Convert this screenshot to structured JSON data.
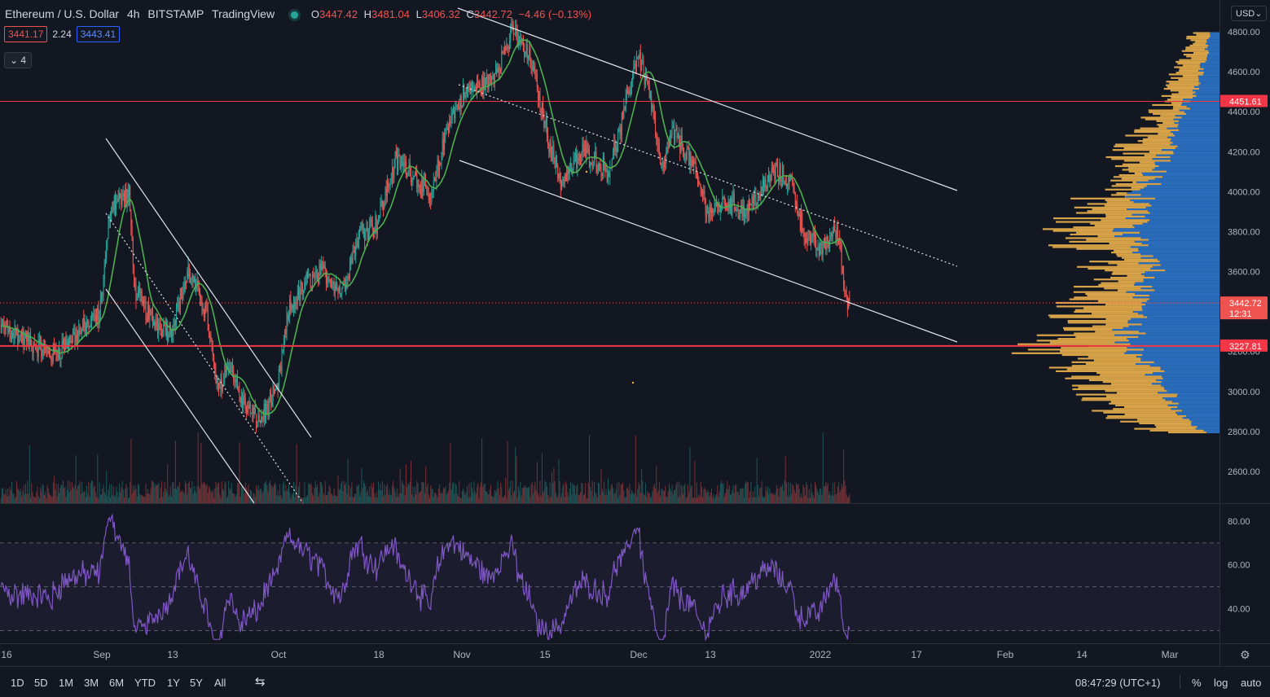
{
  "header": {
    "symbol": "Ethereum / U.S. Dollar",
    "interval": "4h",
    "exchange": "BITSTAMP",
    "source": "TradingView",
    "open_label": "O",
    "open": "3447.42",
    "high_label": "H",
    "high": "3481.04",
    "low_label": "L",
    "low": "3406.32",
    "close_label": "C",
    "close": "3442.72",
    "change": "−4.46 (−0.13%)",
    "bid": "3441.17",
    "spread": "2.24",
    "ask": "3443.41",
    "indicators_count": "4"
  },
  "currency": "USD",
  "price_axis": {
    "ticks": [
      "4800.00",
      "4600.00",
      "4400.00",
      "4200.00",
      "4000.00",
      "3800.00",
      "3600.00",
      "3400.00",
      "3200.00",
      "3000.00",
      "2800.00",
      "2600.00"
    ],
    "labels": {
      "resistance": "4451.61",
      "last_price": "3442.72",
      "countdown": "12:31",
      "support": "3227.81"
    }
  },
  "rsi_axis": {
    "ticks": [
      "80.00",
      "60.00",
      "40.00"
    ]
  },
  "time_axis": {
    "labels": [
      "16",
      "Sep",
      "13",
      "Oct",
      "18",
      "Nov",
      "15",
      "Dec",
      "13",
      "2022",
      "17",
      "Feb",
      "14",
      "Mar"
    ]
  },
  "bottom_toolbar": {
    "timeframes": [
      "1D",
      "5D",
      "1M",
      "3M",
      "6M",
      "YTD",
      "1Y",
      "5Y",
      "All"
    ],
    "clock": "08:47:29 (UTC+1)",
    "percent": "%",
    "log": "log",
    "auto": "auto"
  },
  "colors": {
    "background": "#131722",
    "up": "#26a69a",
    "down": "#ef5350",
    "ma": "#4caf50",
    "rsi": "#7e57c2",
    "vp_up": "#f0b44c",
    "vp_down": "#2e7dd7",
    "level": "#f23645"
  },
  "chart_data": {
    "type": "candlestick",
    "interval": "4h",
    "ylim": [
      2480,
      4900
    ],
    "horizontal_levels": [
      4451.61,
      3227.81
    ],
    "last_price": 3442.72,
    "path": [
      [
        "2021-08-16",
        3320
      ],
      [
        "2021-08-20",
        3250
      ],
      [
        "2021-08-24",
        3180
      ],
      [
        "2021-08-28",
        3280
      ],
      [
        "2021-09-01",
        3380
      ],
      [
        "2021-09-03",
        3950
      ],
      [
        "2021-09-06",
        3980
      ],
      [
        "2021-09-07",
        3500
      ],
      [
        "2021-09-10",
        3350
      ],
      [
        "2021-09-13",
        3300
      ],
      [
        "2021-09-16",
        3600
      ],
      [
        "2021-09-19",
        3400
      ],
      [
        "2021-09-21",
        3000
      ],
      [
        "2021-09-23",
        3150
      ],
      [
        "2021-09-25",
        2950
      ],
      [
        "2021-09-28",
        2850
      ],
      [
        "2021-10-01",
        3000
      ],
      [
        "2021-10-03",
        3400
      ],
      [
        "2021-10-06",
        3550
      ],
      [
        "2021-10-09",
        3600
      ],
      [
        "2021-10-12",
        3500
      ],
      [
        "2021-10-15",
        3800
      ],
      [
        "2021-10-18",
        3850
      ],
      [
        "2021-10-21",
        4150
      ],
      [
        "2021-10-24",
        4100
      ],
      [
        "2021-10-27",
        3950
      ],
      [
        "2021-10-30",
        4350
      ],
      [
        "2021-11-02",
        4500
      ],
      [
        "2021-11-06",
        4550
      ],
      [
        "2021-11-10",
        4800
      ],
      [
        "2021-11-13",
        4650
      ],
      [
        "2021-11-16",
        4250
      ],
      [
        "2021-11-18",
        4050
      ],
      [
        "2021-11-22",
        4200
      ],
      [
        "2021-11-26",
        4100
      ],
      [
        "2021-11-28",
        4300
      ],
      [
        "2021-12-01",
        4700
      ],
      [
        "2021-12-03",
        4500
      ],
      [
        "2021-12-05",
        4100
      ],
      [
        "2021-12-07",
        4300
      ],
      [
        "2021-12-10",
        4150
      ],
      [
        "2021-12-13",
        3900
      ],
      [
        "2021-12-16",
        3950
      ],
      [
        "2021-12-19",
        3900
      ],
      [
        "2021-12-22",
        4000
      ],
      [
        "2021-12-24",
        4100
      ],
      [
        "2021-12-27",
        4050
      ],
      [
        "2021-12-29",
        3800
      ],
      [
        "2022-01-01",
        3700
      ],
      [
        "2022-01-03",
        3800
      ],
      [
        "2022-01-04",
        3780
      ],
      [
        "2022-01-05",
        3500
      ],
      [
        "2022-01-05",
        3442.72
      ]
    ],
    "rsi_ylim": [
      25,
      87
    ],
    "rsi_levels": [
      70,
      50,
      30
    ],
    "volume_profile": [
      [
        4800,
        0.1,
        0.04
      ],
      [
        4700,
        0.13,
        0.05
      ],
      [
        4600,
        0.17,
        0.07
      ],
      [
        4500,
        0.18,
        0.1
      ],
      [
        4400,
        0.24,
        0.15
      ],
      [
        4300,
        0.3,
        0.18
      ],
      [
        4200,
        0.36,
        0.2
      ],
      [
        4100,
        0.4,
        0.25
      ],
      [
        4000,
        0.45,
        0.3
      ],
      [
        3900,
        0.55,
        0.3
      ],
      [
        3800,
        0.64,
        0.35
      ],
      [
        3700,
        0.5,
        0.3
      ],
      [
        3600,
        0.45,
        0.25
      ],
      [
        3500,
        0.5,
        0.3
      ],
      [
        3400,
        0.55,
        0.3
      ],
      [
        3300,
        0.6,
        0.35
      ],
      [
        3200,
        0.7,
        0.35
      ],
      [
        3100,
        0.55,
        0.25
      ],
      [
        3000,
        0.48,
        0.2
      ],
      [
        2900,
        0.42,
        0.15
      ],
      [
        2800,
        0.25,
        0.06
      ]
    ]
  }
}
